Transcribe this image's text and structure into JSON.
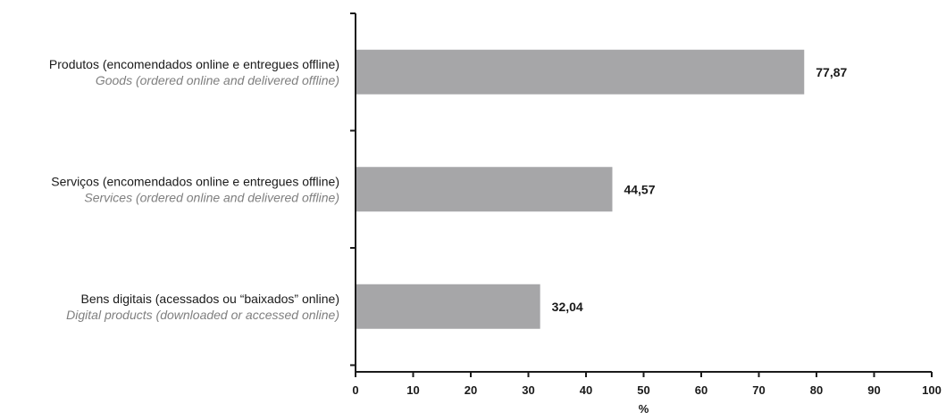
{
  "chart_data": {
    "type": "bar",
    "orientation": "horizontal",
    "categories": [
      {
        "label": "Produtos (encomendados online e entregues offline)",
        "label_en": "Goods (ordered online and delivered offline)"
      },
      {
        "label": "Serviços (encomendados online e entregues offline)",
        "label_en": "Services (ordered online and delivered offline)"
      },
      {
        "label": "Bens digitais (acessados ou “baixados” online)",
        "label_en": "Digital products (downloaded or accessed online)"
      }
    ],
    "values": [
      77.87,
      44.57,
      32.04
    ],
    "value_labels": [
      "77,87",
      "44,57",
      "32,04"
    ],
    "xlabel": "%",
    "ylabel": "",
    "xlim": [
      0,
      100
    ],
    "ticks": [
      0,
      10,
      20,
      30,
      40,
      50,
      60,
      70,
      80,
      90,
      100
    ],
    "tick_labels": [
      "0",
      "10",
      "20",
      "30",
      "40",
      "50",
      "60",
      "70",
      "80",
      "90",
      "100"
    ],
    "grid": false,
    "legend": "none",
    "bar_color": "#a6a6a8",
    "axis_color": "#1a1a1a"
  }
}
